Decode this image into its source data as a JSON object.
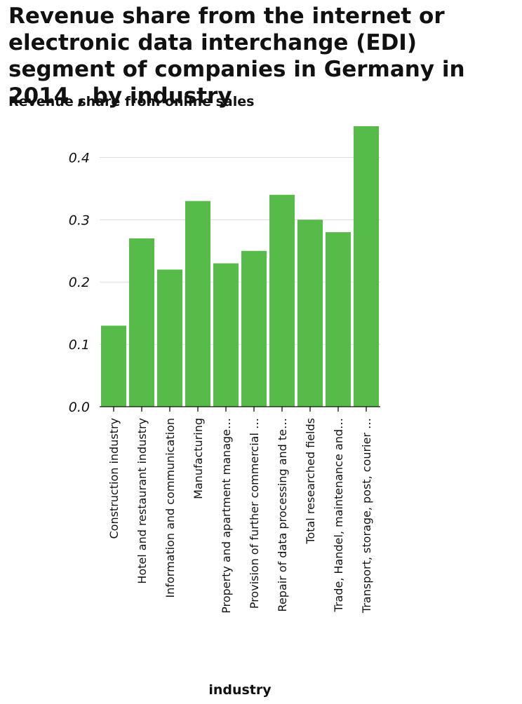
{
  "chart_data": {
    "type": "bar",
    "title": "Revenue share from the internet or electronic data interchange (EDI) segment of companies in Germany in 2014 , by industry",
    "ylabel": "Revenue share from online sales",
    "xlabel": "industry",
    "ylim": [
      0,
      0.45
    ],
    "yticks": [
      "0.0",
      "0.1",
      "0.2",
      "0.3",
      "0.4"
    ],
    "categories": [
      "Construction industry",
      "Hotel and restaurant industry",
      "Information and communication",
      "Manufacturing",
      "Property and apartment manage…",
      "Provision of further commercial …",
      "Repair of data processing and te…",
      "Total researched fields",
      "Trade, Handel, maintenance and…",
      "Transport, storage, post, courier …"
    ],
    "values": [
      0.13,
      0.27,
      0.22,
      0.33,
      0.23,
      0.25,
      0.34,
      0.3,
      0.28,
      0.45
    ],
    "bar_color": "#57bb4a",
    "grid": true
  }
}
